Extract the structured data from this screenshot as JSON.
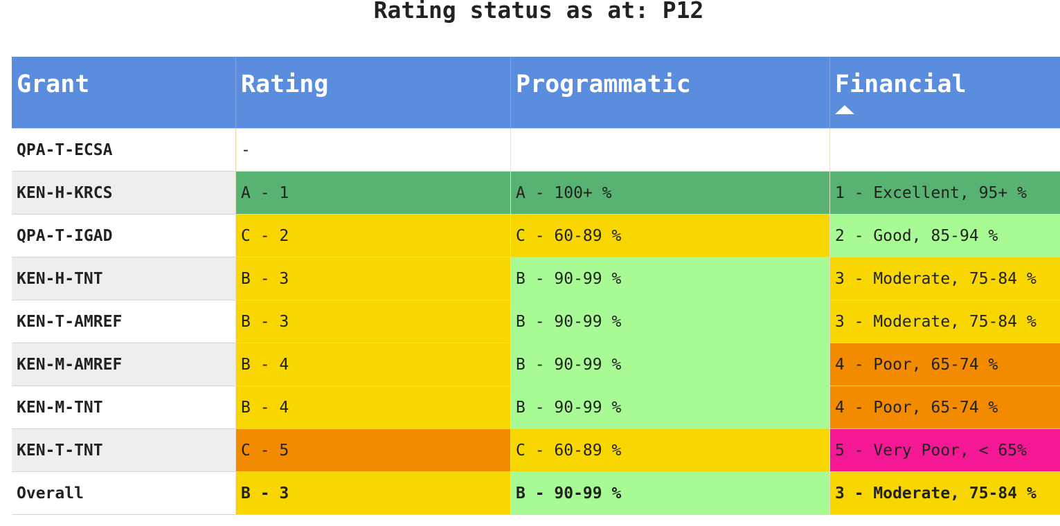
{
  "title": "Rating status as at: P12",
  "colors": {
    "header": "#5b8dde",
    "excellent": "#58b272",
    "good": "#a8fa94",
    "moderate": "#f8d600",
    "poor": "#f38b00",
    "very_poor": "#f41894"
  },
  "header": {
    "grant": "Grant",
    "rating": "Rating",
    "programmatic": "Programmatic",
    "financial": "Financial",
    "sort_icon": "sort-ascending-icon"
  },
  "rows": [
    {
      "grant": "QPA-T-ECSA",
      "rating": "-",
      "programmatic": "",
      "financial": "",
      "colors": [
        "#ffffff",
        "#ffffff",
        "#ffffff"
      ]
    },
    {
      "grant": "KEN-H-KRCS",
      "rating": "A - 1",
      "programmatic": "A - 100+ %",
      "financial": "1 - Excellent, 95+ %",
      "colors": [
        "#58b272",
        "#58b272",
        "#58b272"
      ]
    },
    {
      "grant": "QPA-T-IGAD",
      "rating": "C - 2",
      "programmatic": "C - 60-89 %",
      "financial": "2 - Good, 85-94 %",
      "colors": [
        "#f8d600",
        "#f8d600",
        "#a8fa94"
      ]
    },
    {
      "grant": "KEN-H-TNT",
      "rating": "B - 3",
      "programmatic": "B - 90-99 %",
      "financial": "3 - Moderate, 75-84 %",
      "colors": [
        "#f8d600",
        "#a8fa94",
        "#f8d600"
      ]
    },
    {
      "grant": "KEN-T-AMREF",
      "rating": "B - 3",
      "programmatic": "B - 90-99 %",
      "financial": "3 - Moderate, 75-84 %",
      "colors": [
        "#f8d600",
        "#a8fa94",
        "#f8d600"
      ]
    },
    {
      "grant": "KEN-M-AMREF",
      "rating": "B - 4",
      "programmatic": "B - 90-99 %",
      "financial": "4 - Poor, 65-74 %",
      "colors": [
        "#f8d600",
        "#a8fa94",
        "#f38b00"
      ]
    },
    {
      "grant": "KEN-M-TNT",
      "rating": "B - 4",
      "programmatic": "B - 90-99 %",
      "financial": "4 - Poor, 65-74 %",
      "colors": [
        "#f8d600",
        "#a8fa94",
        "#f38b00"
      ]
    },
    {
      "grant": "KEN-T-TNT",
      "rating": "C - 5",
      "programmatic": "C - 60-89 %",
      "financial": "5 - Very Poor, < 65%",
      "colors": [
        "#f38b00",
        "#f8d600",
        "#f41894"
      ]
    },
    {
      "grant": "Overall",
      "rating": "B - 3",
      "programmatic": "B - 90-99 %",
      "financial": "3 - Moderate, 75-84 %",
      "colors": [
        "#f8d600",
        "#a8fa94",
        "#f8d600"
      ]
    }
  ]
}
